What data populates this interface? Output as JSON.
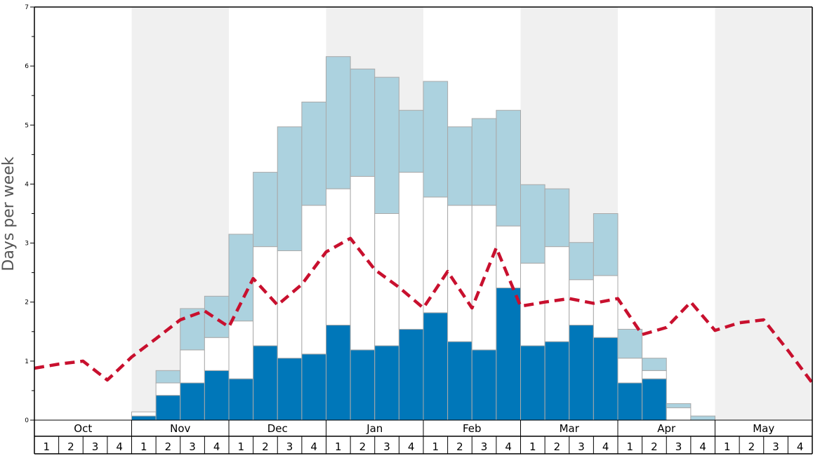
{
  "chart_data": {
    "type": "bar",
    "ylabel": "Days per week",
    "ylim": [
      0,
      7
    ],
    "yticks": [
      "0",
      "1",
      "2",
      "3",
      "4",
      "5",
      "6",
      "7"
    ],
    "months": [
      "Oct",
      "Nov",
      "Dec",
      "Jan",
      "Feb",
      "Mar",
      "Apr",
      "May"
    ],
    "weeks": [
      "1",
      "2",
      "3",
      "4"
    ],
    "stack_order": [
      "dark",
      "white",
      "light"
    ],
    "series": [
      {
        "key": "dark",
        "color": "#0077b9",
        "values": [
          0,
          0,
          0,
          0,
          0.07,
          0.42,
          0.63,
          0.84,
          0.7,
          1.26,
          1.05,
          1.12,
          1.61,
          1.19,
          1.26,
          1.54,
          1.82,
          1.33,
          1.19,
          2.24,
          1.26,
          1.33,
          1.61,
          1.4,
          0.63,
          0.7,
          0,
          0,
          0,
          0,
          0,
          0
        ]
      },
      {
        "key": "white",
        "color": "#ffffff",
        "values": [
          0,
          0,
          0,
          0,
          0.07,
          0.21,
          0.56,
          0.56,
          0.98,
          1.68,
          1.82,
          2.52,
          2.31,
          2.94,
          2.24,
          2.66,
          1.96,
          2.31,
          2.45,
          1.05,
          1.4,
          1.61,
          0.77,
          1.05,
          0.42,
          0.14,
          0.21,
          0,
          0,
          0,
          0,
          0
        ]
      },
      {
        "key": "light",
        "color": "#acd2df",
        "values": [
          0,
          0,
          0,
          0,
          0,
          0.21,
          0.7,
          0.7,
          1.47,
          1.26,
          2.1,
          1.75,
          2.24,
          1.82,
          2.31,
          1.05,
          1.96,
          1.33,
          1.47,
          1.96,
          1.33,
          0.98,
          0.63,
          1.05,
          0.49,
          0.21,
          0.07,
          0.07,
          0,
          0,
          0,
          0
        ]
      }
    ],
    "line": {
      "color": "#c8102e",
      "values": [
        0.88,
        0.95,
        1.0,
        0.68,
        1.07,
        1.38,
        1.7,
        1.85,
        1.58,
        2.4,
        1.95,
        2.3,
        2.85,
        3.08,
        2.55,
        2.25,
        1.9,
        2.52,
        1.9,
        2.92,
        1.93,
        2.0,
        2.06,
        1.98,
        2.06,
        1.45,
        1.57,
        2.0,
        1.52,
        1.65,
        1.7,
        1.18,
        0.63
      ]
    },
    "colors": {
      "shade": "#f0f0f0",
      "bar_border": "#a9a9a9"
    }
  }
}
